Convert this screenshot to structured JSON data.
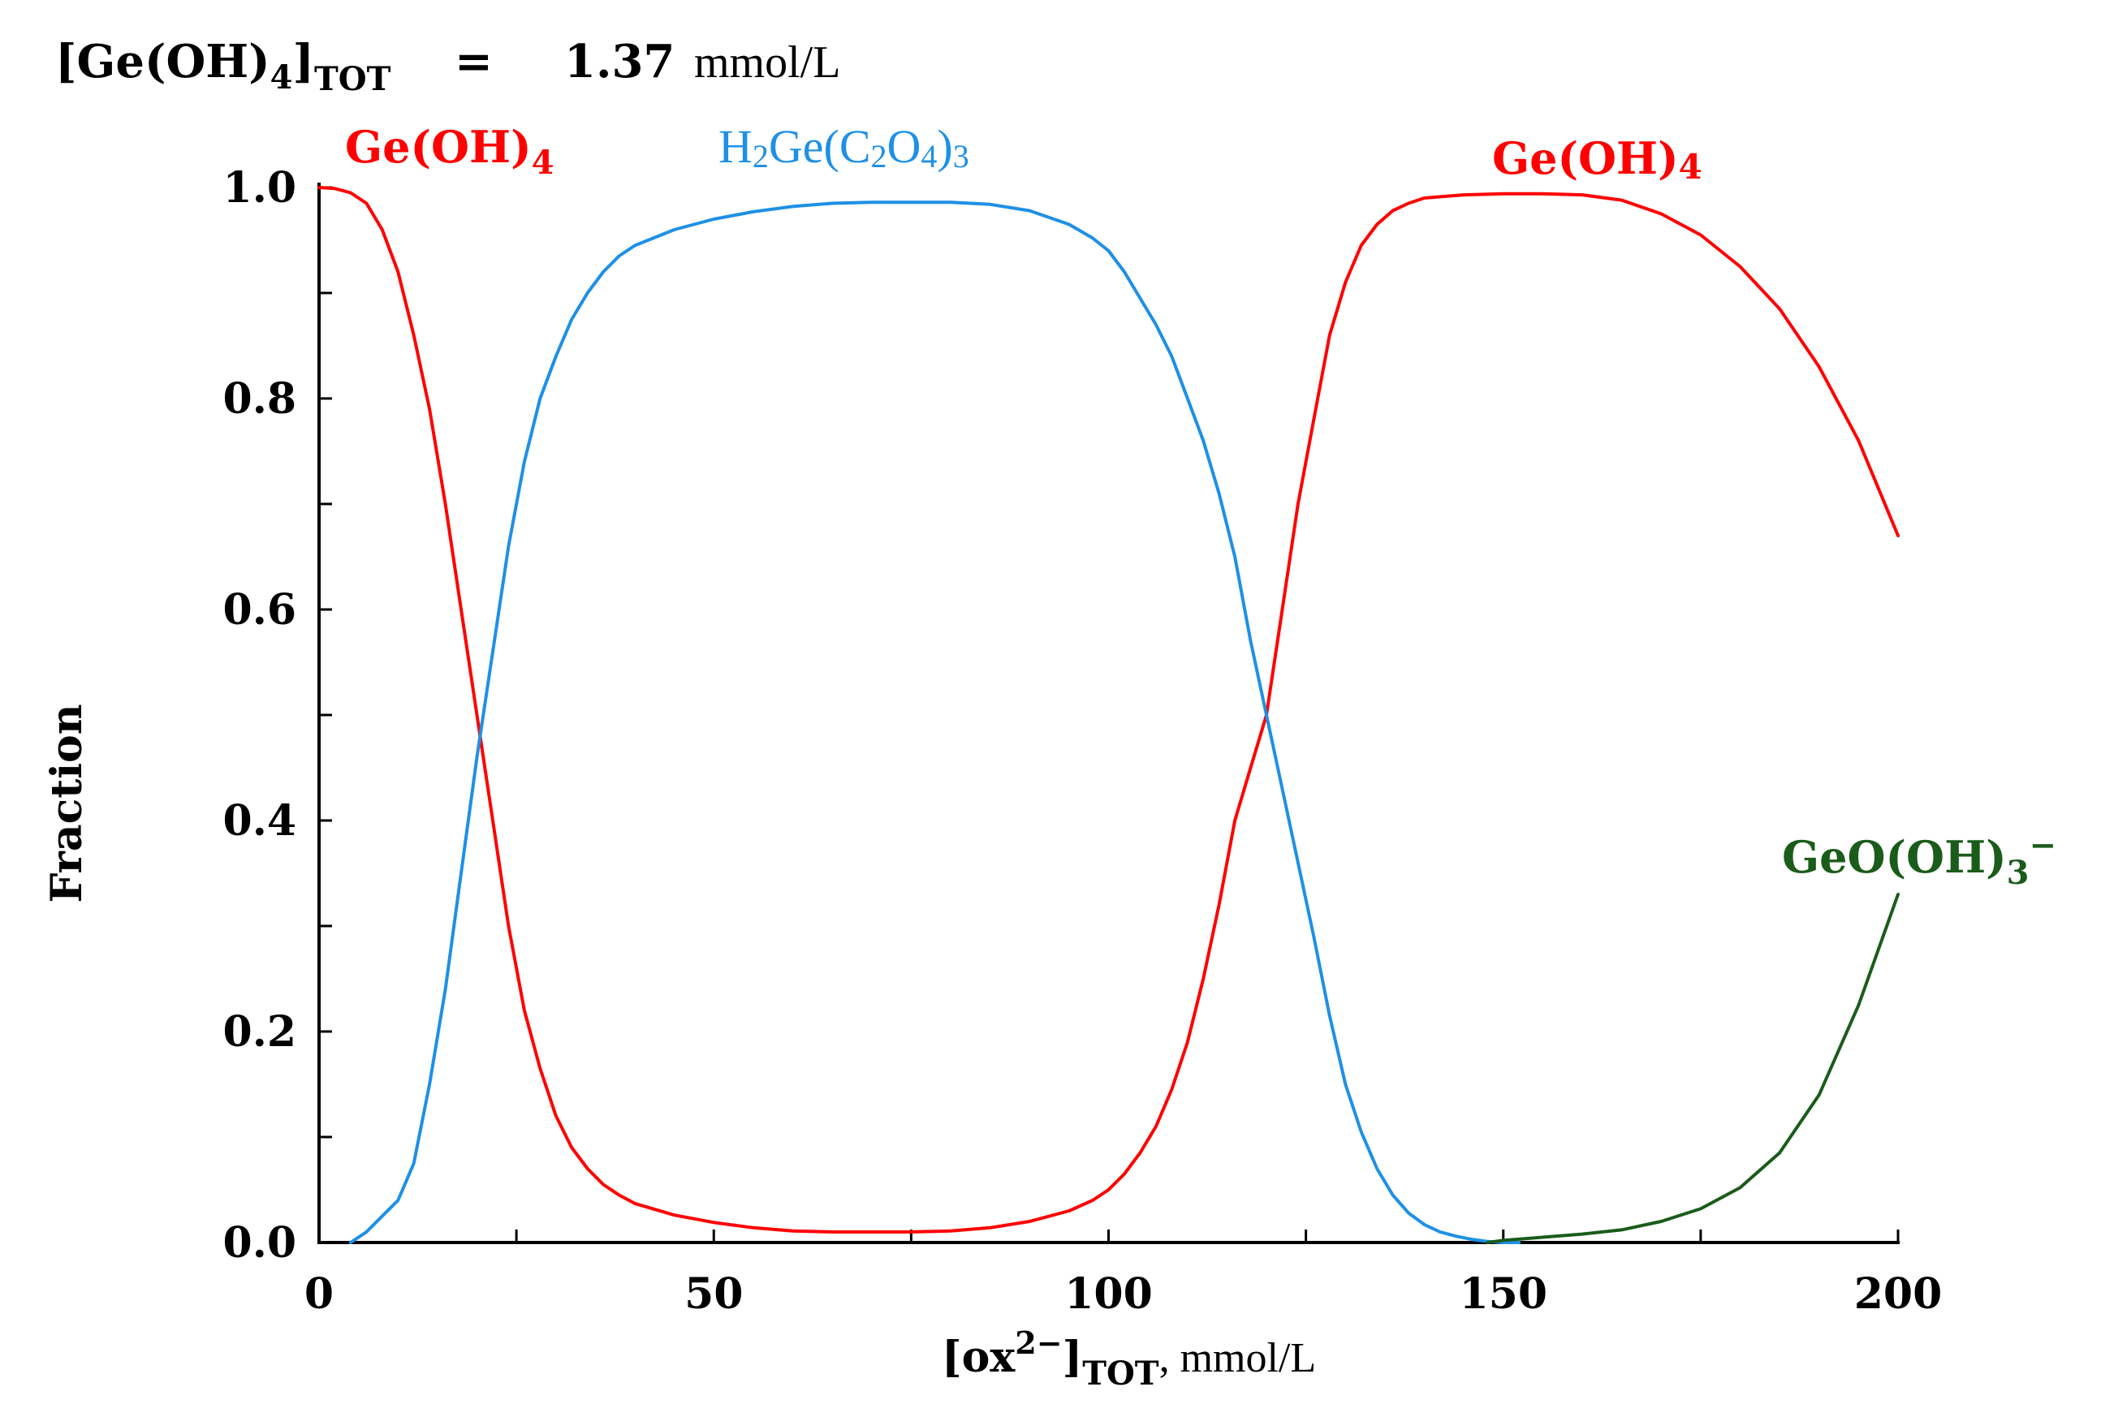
{
  "header": {
    "label_main": "[Ge(OH)",
    "label_sub4": "4",
    "label_close": "]",
    "label_subtot": "TOT",
    "equals": "=",
    "value": "1.37",
    "unit": "mmol/L"
  },
  "chart_data": {
    "type": "line",
    "title": "[Ge(OH)4]TOT = 1.37 mmol/L",
    "xlabel": "[ox2-]TOT, mmol/L",
    "ylabel": "Fraction",
    "xlim": [
      0,
      200
    ],
    "ylim": [
      0,
      1.0
    ],
    "x_ticks": [
      0,
      50,
      100,
      150,
      200
    ],
    "x_tick_labels": [
      "0",
      "50",
      "100",
      "150",
      "200"
    ],
    "y_ticks": [
      0.0,
      0.2,
      0.4,
      0.6,
      0.8,
      1.0
    ],
    "y_tick_labels": [
      "0.0",
      "0.2",
      "0.4",
      "0.6",
      "0.8",
      "1.0"
    ],
    "grid": false,
    "series": [
      {
        "name": "Ge(OH)4",
        "color": "#ff0000",
        "x": [
          0,
          2,
          4,
          6,
          8,
          10,
          12,
          14,
          16,
          18,
          20,
          22,
          24,
          26,
          28,
          30,
          32,
          34,
          36,
          38,
          40,
          45,
          50,
          55,
          60,
          65,
          70,
          75,
          80,
          85,
          90,
          95,
          98,
          100,
          102,
          104,
          106,
          108,
          110,
          112,
          114,
          116,
          118,
          120,
          122,
          124,
          126,
          128,
          130,
          132,
          134,
          136,
          138,
          140,
          145,
          150,
          155,
          160,
          165,
          170,
          175,
          180,
          185,
          190,
          195,
          200
        ],
        "y": [
          1.0,
          0.999,
          0.995,
          0.985,
          0.96,
          0.92,
          0.86,
          0.79,
          0.7,
          0.6,
          0.5,
          0.4,
          0.3,
          0.22,
          0.165,
          0.12,
          0.09,
          0.07,
          0.055,
          0.045,
          0.037,
          0.026,
          0.019,
          0.014,
          0.011,
          0.01,
          0.01,
          0.01,
          0.011,
          0.014,
          0.02,
          0.03,
          0.04,
          0.05,
          0.065,
          0.085,
          0.11,
          0.145,
          0.19,
          0.25,
          0.32,
          0.4,
          0.45,
          0.5,
          0.6,
          0.7,
          0.78,
          0.86,
          0.91,
          0.945,
          0.965,
          0.978,
          0.985,
          0.99,
          0.993,
          0.994,
          0.994,
          0.993,
          0.988,
          0.975,
          0.955,
          0.925,
          0.885,
          0.83,
          0.76,
          0.67
        ]
      },
      {
        "name": "H2Ge(C2O4)3",
        "color": "#1e90e6",
        "x": [
          4,
          6,
          8,
          10,
          12,
          14,
          16,
          18,
          20,
          22,
          24,
          26,
          28,
          30,
          32,
          34,
          36,
          38,
          40,
          45,
          50,
          55,
          60,
          65,
          70,
          75,
          80,
          85,
          90,
          95,
          98,
          100,
          102,
          104,
          106,
          108,
          110,
          112,
          114,
          116,
          118,
          120,
          122,
          124,
          126,
          128,
          130,
          132,
          134,
          136,
          138,
          140,
          142,
          144,
          146,
          148,
          150,
          152
        ],
        "y": [
          0.0,
          0.01,
          0.025,
          0.04,
          0.075,
          0.15,
          0.24,
          0.35,
          0.46,
          0.56,
          0.66,
          0.74,
          0.8,
          0.84,
          0.875,
          0.9,
          0.92,
          0.935,
          0.945,
          0.96,
          0.97,
          0.977,
          0.982,
          0.985,
          0.986,
          0.986,
          0.986,
          0.984,
          0.978,
          0.965,
          0.952,
          0.94,
          0.92,
          0.895,
          0.87,
          0.84,
          0.8,
          0.76,
          0.71,
          0.65,
          0.57,
          0.5,
          0.43,
          0.36,
          0.29,
          0.215,
          0.15,
          0.105,
          0.07,
          0.045,
          0.028,
          0.017,
          0.01,
          0.006,
          0.003,
          0.001,
          0.0,
          0.0
        ]
      },
      {
        "name": "GeO(OH)3-",
        "color": "#1a5c1a",
        "x": [
          148,
          150,
          155,
          160,
          165,
          170,
          175,
          180,
          185,
          190,
          195,
          200
        ],
        "y": [
          0.0,
          0.002,
          0.005,
          0.008,
          0.012,
          0.02,
          0.032,
          0.052,
          0.085,
          0.14,
          0.225,
          0.33
        ]
      }
    ],
    "labels": {
      "ge_left_main": "Ge(OH)",
      "ge_left_sub": "4",
      "h2_main_a": "H",
      "h2_sub_a": "2",
      "h2_main_b": "Ge(C",
      "h2_sub_b": "2",
      "h2_main_c": "O",
      "h2_sub_c": "4",
      "h2_main_d": ")",
      "h2_sub_d": "3",
      "ge_right_main": "Ge(OH)",
      "ge_right_sub": "4",
      "geo_main": "GeO(OH)",
      "geo_sub": "3",
      "geo_sup": "−"
    },
    "xlabel_parts": {
      "open": "[ox",
      "sup": "2−",
      "close": "]",
      "sub": "TOT",
      "unit": ", mmol/L"
    }
  }
}
